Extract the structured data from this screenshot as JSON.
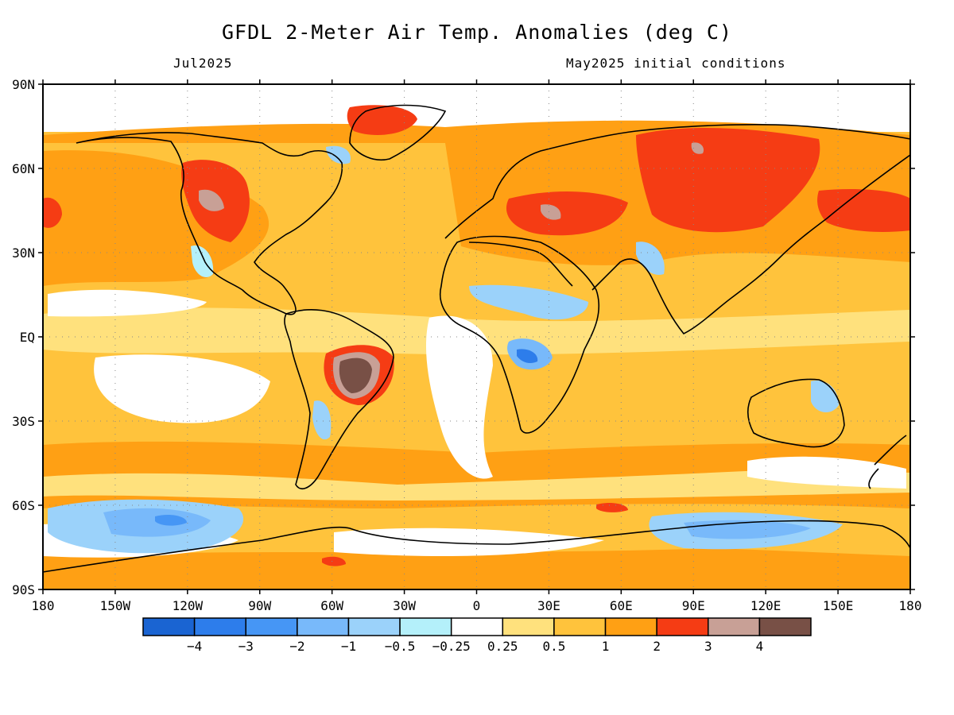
{
  "header": {
    "title": "GFDL 2-Meter Air Temp. Anomalies (deg C)",
    "valid_month": "Jul2025",
    "initial_conditions": "May2025 initial conditions"
  },
  "map": {
    "lat_ticks": [
      "90N",
      "60N",
      "30N",
      "EQ",
      "30S",
      "60S",
      "90S"
    ],
    "lon_ticks": [
      "180",
      "150W",
      "120W",
      "90W",
      "60W",
      "30W",
      "0",
      "30E",
      "60E",
      "90E",
      "120E",
      "150E",
      "180"
    ],
    "colorbar": {
      "colors": [
        "#1a64d2",
        "#2d7deb",
        "#4696f5",
        "#78b9fa",
        "#9bd2fa",
        "#b4f0fa",
        "#ffffff",
        "#ffe17d",
        "#ffc33c",
        "#ffa014",
        "#f53c14",
        "#c8a096",
        "#785046"
      ],
      "labels": [
        "−4",
        "−3",
        "−2",
        "−1",
        "−0.5",
        "−0.25",
        "0.25",
        "0.5",
        "1",
        "2",
        "3",
        "4"
      ]
    }
  }
}
